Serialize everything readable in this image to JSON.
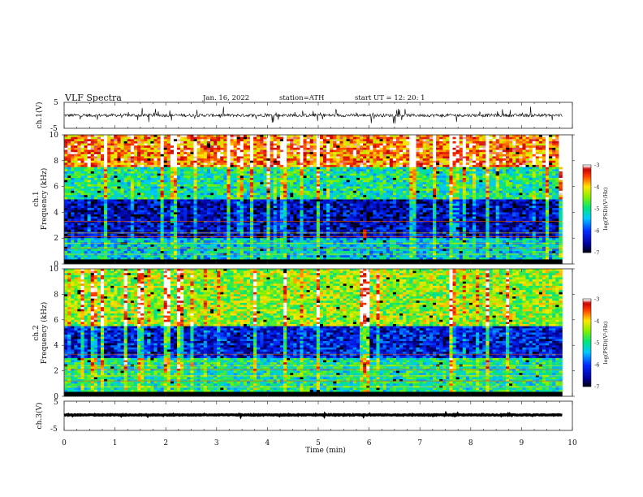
{
  "header": {
    "title": "VLF  Spectra",
    "date": "Jan. 16, 2022",
    "station": "station=ATH",
    "start_ut": "start  UT  =    12: 20: 1"
  },
  "chart_data": [
    {
      "type": "line",
      "name": "ch1-waveform",
      "ylabel": "ch.1(V)",
      "ylim": [
        -5,
        5
      ],
      "yticks": [
        "5",
        "-5"
      ],
      "xlim": [
        0,
        10
      ],
      "data_end_min": 9.8,
      "baseline": 0,
      "noise_amplitude": 1.2,
      "spike_amplitude": 3.0
    },
    {
      "type": "heatmap",
      "name": "ch1-spectrogram",
      "ylabel": "Frequency  (kHz)",
      "channel_label": "ch.1",
      "ylim": [
        0,
        10
      ],
      "yticks": [
        "0",
        "2",
        "4",
        "6",
        "8",
        "10"
      ],
      "xlim": [
        0,
        10
      ],
      "data_end_min": 9.8,
      "colorbar": {
        "label": "log(PSD)(V²/Hz)",
        "range": [
          -7,
          -3
        ],
        "ticks": [
          "-3",
          "-4",
          "-5",
          "-6",
          "-7"
        ]
      },
      "bands_khz": [
        {
          "from": 0,
          "to": 0.4,
          "level": -7
        },
        {
          "from": 0.4,
          "to": 2.0,
          "level": -5.3
        },
        {
          "from": 2.0,
          "to": 5.0,
          "level": -6.4
        },
        {
          "from": 5.0,
          "to": 7.5,
          "level": -5.0
        },
        {
          "from": 7.5,
          "to": 10.0,
          "level": -3.6
        }
      ],
      "event_min": 5.85
    },
    {
      "type": "heatmap",
      "name": "ch2-spectrogram",
      "ylabel": "Frequency  (kHz)",
      "channel_label": "ch.2",
      "ylim": [
        0,
        10
      ],
      "yticks": [
        "0",
        "2",
        "4",
        "6",
        "8",
        "10"
      ],
      "xlim": [
        0,
        10
      ],
      "data_end_min": 9.8,
      "colorbar": {
        "label": "log(PSD)(V²/Hz)",
        "range": [
          -7,
          -3
        ],
        "ticks": [
          "-3",
          "-4",
          "-5",
          "-6",
          "-7"
        ]
      },
      "bands_khz": [
        {
          "from": 0,
          "to": 0.4,
          "level": -6.8
        },
        {
          "from": 0.4,
          "to": 3.0,
          "level": -5.0
        },
        {
          "from": 3.0,
          "to": 5.5,
          "level": -6.2
        },
        {
          "from": 5.5,
          "to": 10.0,
          "level": -4.4
        }
      ],
      "event_min": 5.85
    },
    {
      "type": "line",
      "name": "ch3-waveform",
      "ylabel": "ch.3(V)",
      "ylim": [
        -5,
        5
      ],
      "yticks": [
        "5",
        "-5"
      ],
      "xlim": [
        0,
        10
      ],
      "data_end_min": 9.8,
      "baseline": 0.3,
      "noise_amplitude": 0.25,
      "spike_amplitude": 0.3
    }
  ],
  "time_axis": {
    "xlabel": "Time  (min)",
    "ticks": [
      "0",
      "1",
      "2",
      "3",
      "4",
      "5",
      "6",
      "7",
      "8",
      "9",
      "10"
    ]
  }
}
